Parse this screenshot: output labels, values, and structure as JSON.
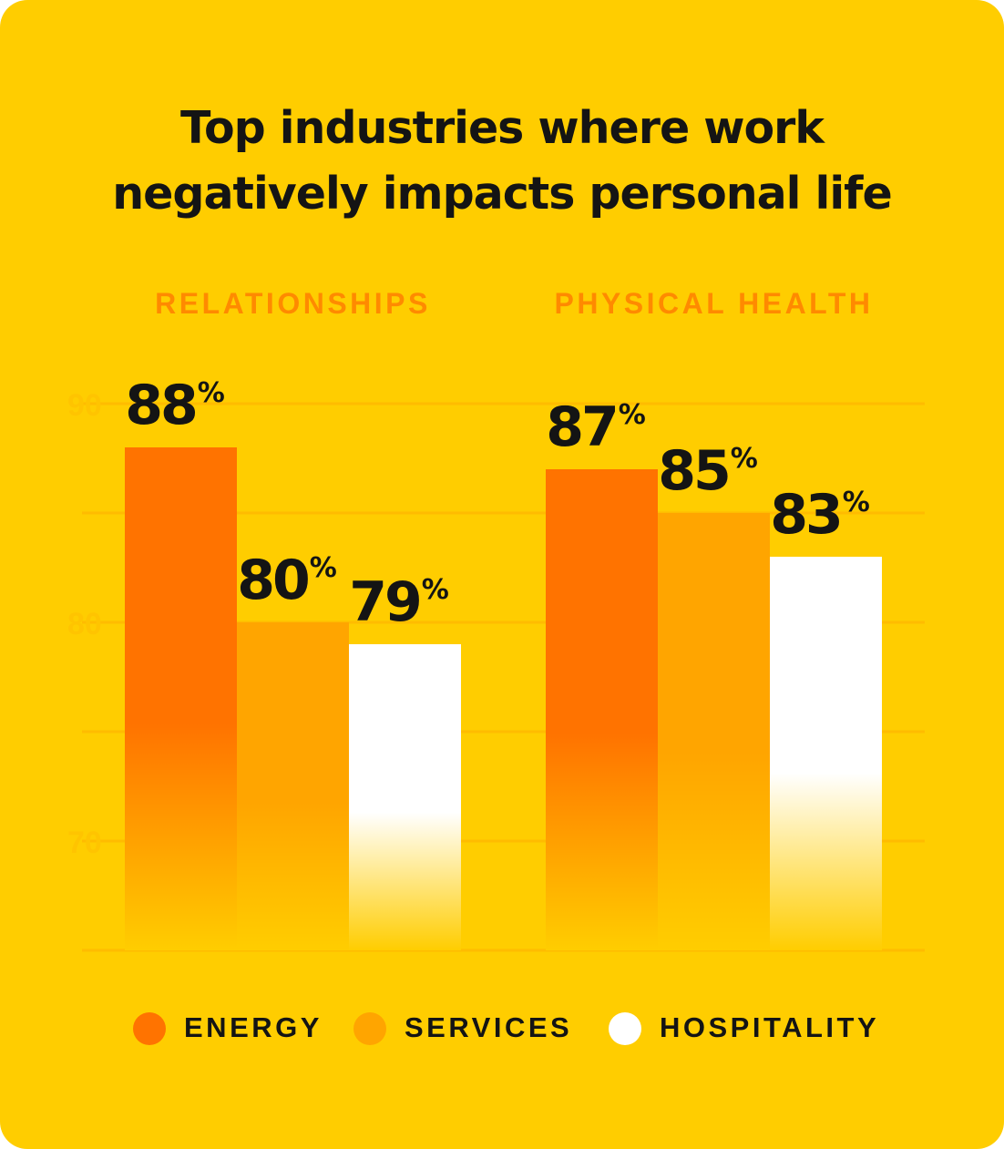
{
  "title_lines": [
    "Top industries where work",
    "negatively impacts personal life"
  ],
  "chart_data": {
    "type": "bar",
    "title": "Top industries where work negatively impacts personal life",
    "categories": [
      "RELATIONSHIPS",
      "PHYSICAL HEALTH"
    ],
    "series": [
      {
        "name": "ENERGY",
        "color": "#FF7300",
        "values": [
          88,
          87
        ]
      },
      {
        "name": "SERVICES",
        "color": "#FFA500",
        "values": [
          80,
          85
        ]
      },
      {
        "name": "HOSPITALITY",
        "color": "#FFFFFF",
        "values": [
          79,
          83
        ]
      }
    ],
    "value_suffix": "%",
    "yticks": [
      90,
      80,
      70
    ],
    "ylim": [
      65,
      90
    ],
    "grid": true,
    "legend": "bottom",
    "colors": {
      "background": "#FFCD00",
      "category_label": "#FF8A00",
      "grid": "#FFBC00",
      "tick_label": "#FFC400",
      "value_label": "#141414"
    }
  }
}
